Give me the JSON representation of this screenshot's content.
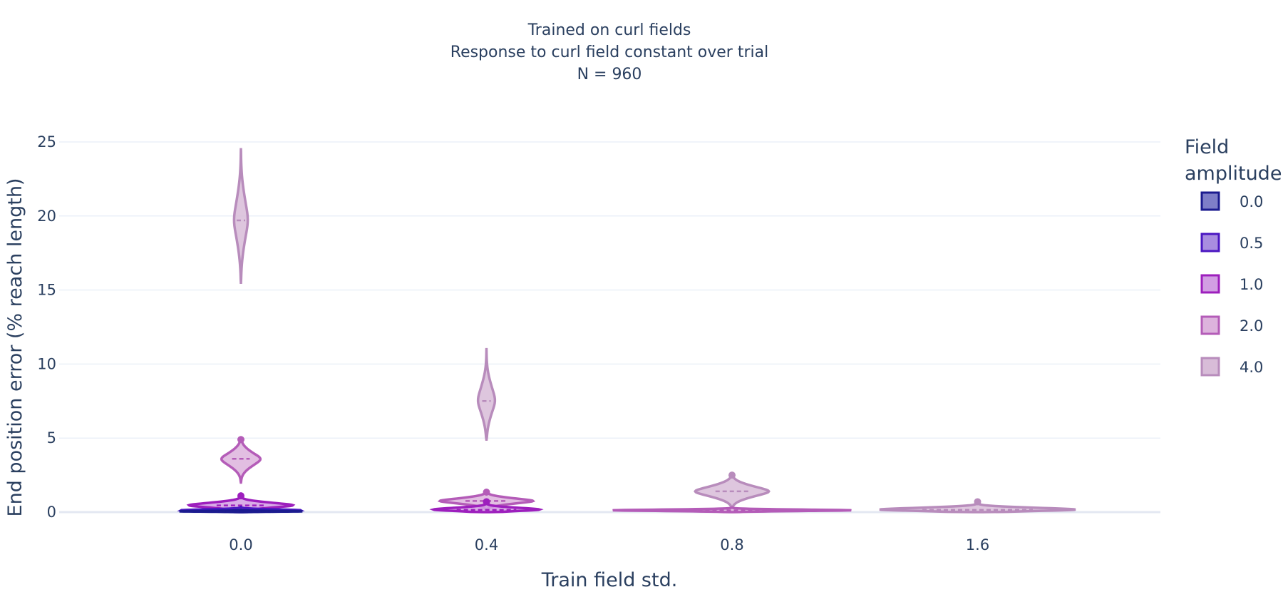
{
  "chart_data": {
    "type": "violin",
    "title_lines": [
      "Trained on curl fields",
      "Response to curl field constant over trial",
      "N = 960"
    ],
    "xlabel": "Train field std.",
    "ylabel": "End position error (% reach length)",
    "categories": [
      "0.0",
      "0.4",
      "0.8",
      "1.6"
    ],
    "ylim": [
      0,
      25
    ],
    "yticks": [
      0,
      5,
      10,
      15,
      20,
      25
    ],
    "grid": true,
    "legend": {
      "title_lines": [
        "Field",
        "amplitude"
      ],
      "position": "right"
    },
    "series": [
      {
        "name": "0.0",
        "fill": "#7e7ec8",
        "line": "#1b1b8f",
        "groups": [
          {
            "category": "0.0",
            "min": 0.0,
            "max": 0.15,
            "median": 0.05,
            "halfwidth": 0.27
          }
        ]
      },
      {
        "name": "0.5",
        "fill": "#a98de0",
        "line": "#4b17c2",
        "groups": [
          {
            "category": "0.0",
            "min": 0.0,
            "max": 0.35,
            "median": 0.12,
            "halfwidth": 0.26
          }
        ]
      },
      {
        "name": "1.0",
        "fill": "#d29ee3",
        "line": "#9d1fbd",
        "groups": [
          {
            "category": "0.0",
            "min": 0.05,
            "max": 1.1,
            "median": 0.45,
            "halfwidth": 0.22
          },
          {
            "category": "0.4",
            "min": 0.0,
            "max": 0.7,
            "median": 0.15,
            "halfwidth": 0.27
          }
        ]
      },
      {
        "name": "2.0",
        "fill": "#ddb3dd",
        "line": "#b45cb8",
        "groups": [
          {
            "category": "0.0",
            "min": 2.0,
            "max": 4.9,
            "median": 3.6,
            "halfwidth": 0.08
          },
          {
            "category": "0.4",
            "min": 0.2,
            "max": 1.35,
            "median": 0.75,
            "halfwidth": 0.19
          },
          {
            "category": "0.8",
            "min": 0.0,
            "max": 0.3,
            "median": 0.12,
            "halfwidth": 0.5
          }
        ]
      },
      {
        "name": "4.0",
        "fill": "#d8bcd8",
        "line": "#b88cbc",
        "groups": [
          {
            "category": "0.0",
            "min": 15.5,
            "max": 24.5,
            "median": 19.7,
            "halfwidth": 0.028
          },
          {
            "category": "0.4",
            "min": 4.9,
            "max": 11.0,
            "median": 7.5,
            "halfwidth": 0.035
          },
          {
            "category": "0.8",
            "min": 0.3,
            "max": 2.5,
            "median": 1.4,
            "halfwidth": 0.15
          },
          {
            "category": "1.6",
            "min": 0.0,
            "max": 0.7,
            "median": 0.15,
            "halfwidth": 0.5
          }
        ]
      }
    ]
  }
}
